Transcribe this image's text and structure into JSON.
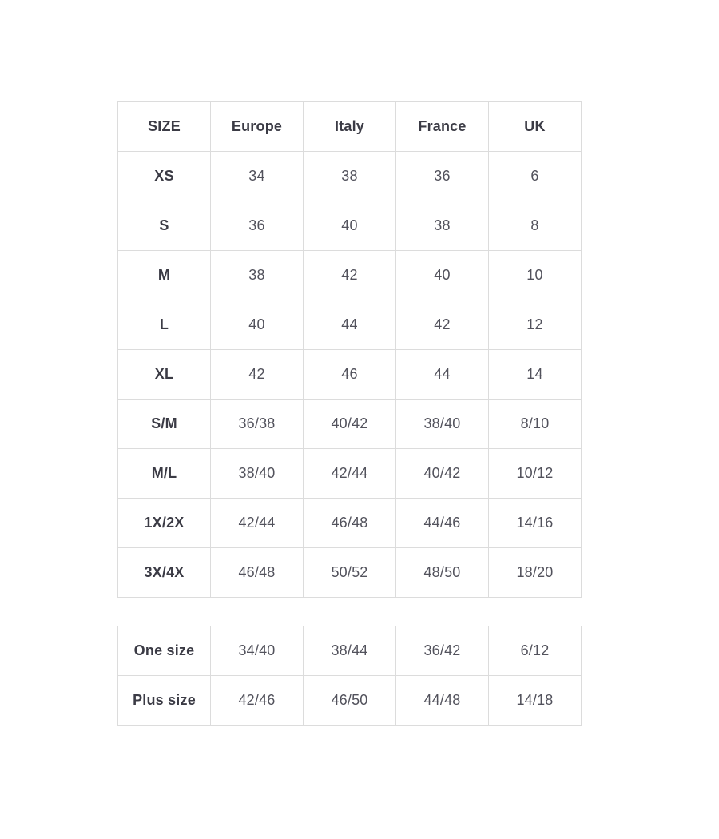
{
  "page": {
    "background": "#ffffff"
  },
  "theme": {
    "border_color": "#dcdcdc",
    "label_text_color": "#3b3b45",
    "value_text_color": "#52525c"
  },
  "chart_data": [
    {
      "type": "table",
      "columns": [
        "SIZE",
        "Europe",
        "Italy",
        "France",
        "UK"
      ],
      "rows": [
        [
          "XS",
          "34",
          "38",
          "36",
          "6"
        ],
        [
          "S",
          "36",
          "40",
          "38",
          "8"
        ],
        [
          "M",
          "38",
          "42",
          "40",
          "10"
        ],
        [
          "L",
          "40",
          "44",
          "42",
          "12"
        ],
        [
          "XL",
          "42",
          "46",
          "44",
          "14"
        ],
        [
          "S/M",
          "36/38",
          "40/42",
          "38/40",
          "8/10"
        ],
        [
          "M/L",
          "38/40",
          "42/44",
          "40/42",
          "10/12"
        ],
        [
          "1X/2X",
          "42/44",
          "46/48",
          "44/46",
          "14/16"
        ],
        [
          "3X/4X",
          "46/48",
          "50/52",
          "48/50",
          "18/20"
        ]
      ]
    },
    {
      "type": "table",
      "columns": [],
      "rows": [
        [
          "One size",
          "34/40",
          "38/44",
          "36/42",
          "6/12"
        ],
        [
          "Plus size",
          "42/46",
          "46/50",
          "44/48",
          "14/18"
        ]
      ]
    }
  ]
}
